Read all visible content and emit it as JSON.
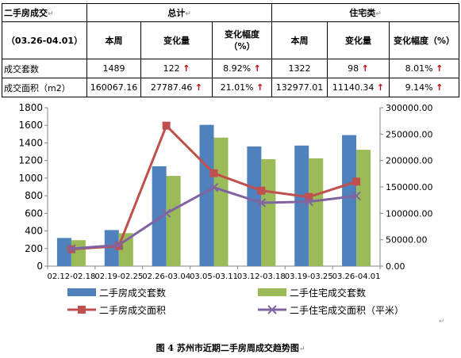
{
  "table": {
    "title_cell": "二手房成交",
    "group_total": "总计",
    "group_residential": "住宅类",
    "period": "（03.26-04.01）",
    "col_this_week": "本周",
    "col_change": "变化量",
    "col_change_pct": "变化幅度（%）",
    "rows": [
      {
        "label": "成交套数",
        "total_week": "1489",
        "total_change": "122",
        "total_pct": "8.92%",
        "res_week": "1322",
        "res_change": "98",
        "res_pct": "8.01%"
      },
      {
        "label": "成交面积（m2）",
        "total_week": "160067.16",
        "total_change": "27787.46",
        "total_pct": "21.01%",
        "res_week": "132977.01",
        "res_change": "11140.34",
        "res_pct": "9.14%"
      }
    ],
    "arrow_glyph": "↑",
    "mark_glyph": "↵"
  },
  "chart_data": {
    "type": "bar",
    "categories": [
      "02.12-02.18",
      "02.19-02.25",
      "02.26-03.04",
      "03.05-03.11",
      "03.12-03.18",
      "03.19-03.25",
      "03.26-04.01"
    ],
    "series": [
      {
        "name": "二手房成交套数",
        "kind": "bar",
        "axis": "left",
        "color": "#4f81bd",
        "values": [
          320,
          410,
          1135,
          1605,
          1360,
          1370,
          1489
        ]
      },
      {
        "name": "二手住宅成交套数",
        "kind": "bar",
        "axis": "left",
        "color": "#9bbb59",
        "values": [
          295,
          375,
          1025,
          1460,
          1215,
          1225,
          1322
        ]
      },
      {
        "name": "二手房成交面积",
        "kind": "line",
        "marker": "square",
        "axis": "right",
        "color": "#c0504d",
        "values": [
          32000,
          38000,
          266000,
          176000,
          143000,
          131000,
          160067.16
        ]
      },
      {
        "name": "二手住宅成交面积（平米）",
        "kind": "line",
        "marker": "x",
        "axis": "right",
        "color": "#8064a2",
        "values": [
          33000,
          40000,
          100000,
          149000,
          120000,
          122000,
          132977.01
        ]
      }
    ],
    "ylim_left": [
      0,
      1800
    ],
    "yticks_left": [
      "0",
      "200",
      "400",
      "600",
      "800",
      "1000",
      "1200",
      "1400",
      "1600",
      "1800"
    ],
    "ylim_right": [
      0,
      300000
    ],
    "yticks_right": [
      "0.00",
      "50000.00",
      "100000.00",
      "150000.00",
      "200000.00",
      "250000.00",
      "300000.00"
    ],
    "grid": false,
    "legend_placement": "bottom"
  },
  "caption": "图 4  苏州市近期二手房周成交趋势图",
  "caption_mark": "↵",
  "corner_mark": "↵"
}
